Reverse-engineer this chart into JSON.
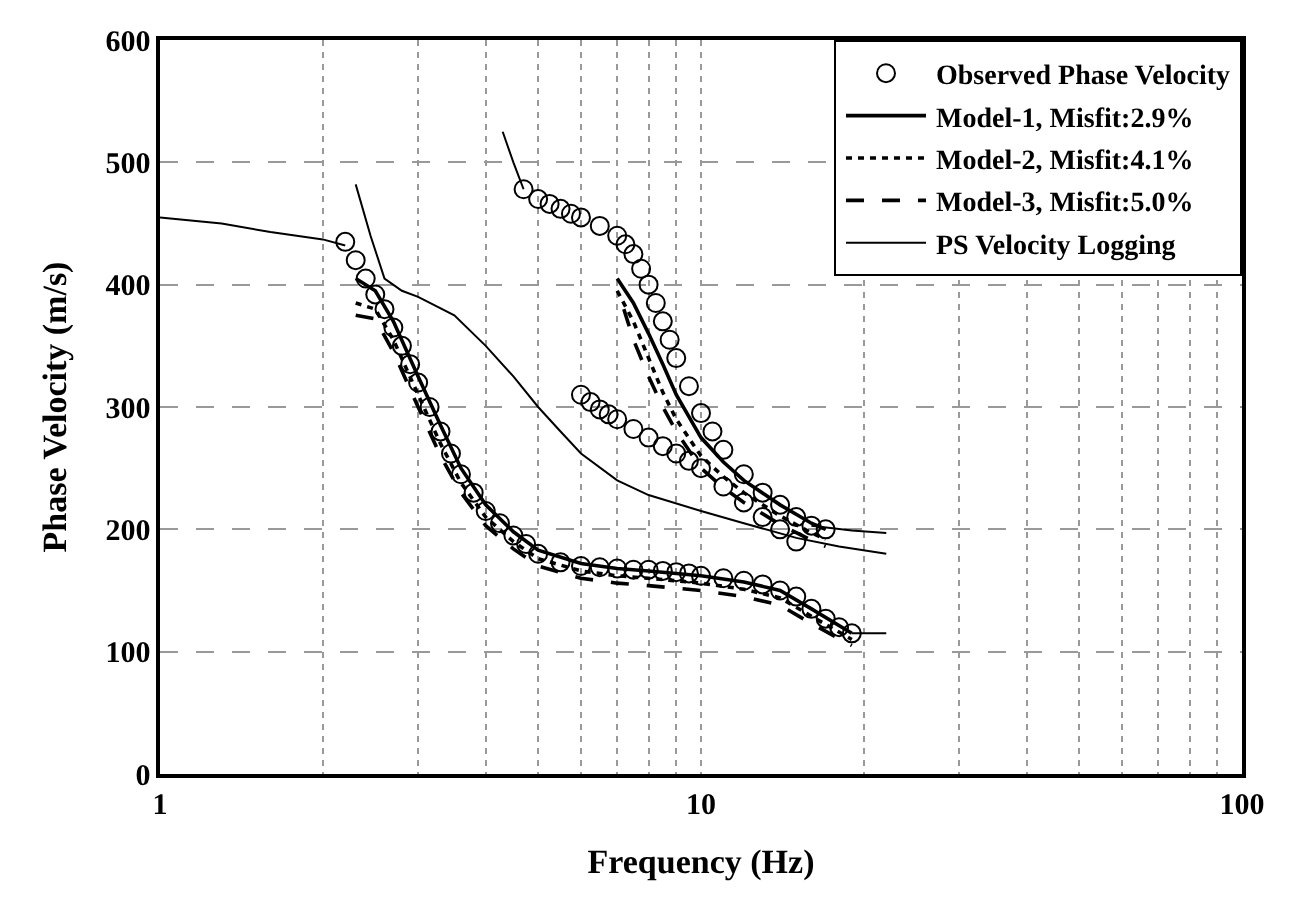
{
  "chart_data": {
    "type": "line",
    "xlabel": "Frequency (Hz)",
    "ylabel": "Phase Velocity (m/s)",
    "log": "x",
    "xlim": [
      1,
      100
    ],
    "xticks": [
      1,
      10,
      100
    ],
    "ylim": [
      0,
      600
    ],
    "yticks": [
      0,
      100,
      200,
      300,
      400,
      500,
      600
    ],
    "grid": true,
    "legend": "top right",
    "series": [
      {
        "name": "Observed Phase Velocity",
        "type": "scatter",
        "marker": "circle",
        "color": "#000000",
        "x": [
          2.2,
          2.3,
          2.4,
          2.5,
          2.6,
          2.7,
          2.8,
          2.9,
          3.0,
          3.15,
          3.3,
          3.45,
          3.6,
          3.8,
          4.0,
          4.25,
          4.5,
          4.75,
          5.0,
          5.5,
          6.0,
          6.5,
          7.0,
          7.5,
          8.0,
          8.5,
          9.0,
          9.5,
          10,
          11,
          12,
          13,
          14,
          15,
          16,
          17,
          18,
          19,
          6.0,
          6.25,
          6.5,
          6.75,
          7.0,
          7.5,
          8.0,
          8.5,
          9.0,
          9.5,
          10,
          11,
          12,
          13,
          14,
          15,
          4.7,
          5.0,
          5.25,
          5.5,
          5.75,
          6.0,
          6.5,
          7.0,
          7.25,
          7.5,
          7.75,
          8.0,
          8.25,
          8.5,
          8.75,
          9.0,
          9.5,
          10,
          10.5,
          11,
          12,
          13,
          14,
          15,
          16,
          17
        ],
        "values": [
          435,
          420,
          405,
          392,
          380,
          365,
          350,
          335,
          320,
          300,
          280,
          262,
          245,
          230,
          215,
          205,
          195,
          188,
          180,
          173,
          170,
          169,
          168,
          167,
          167,
          166,
          165,
          164,
          162,
          160,
          158,
          155,
          150,
          145,
          135,
          127,
          120,
          115,
          310,
          304,
          298,
          294,
          290,
          282,
          275,
          268,
          262,
          256,
          250,
          235,
          222,
          210,
          200,
          190,
          478,
          470,
          466,
          462,
          458,
          455,
          448,
          440,
          433,
          425,
          413,
          400,
          385,
          370,
          355,
          340,
          317,
          295,
          280,
          265,
          245,
          230,
          220,
          210,
          203,
          200
        ]
      },
      {
        "name": "Model-1, Misfit:2.9%",
        "line_style": "solid",
        "color": "#000000",
        "x": [
          2.3,
          2.5,
          2.7,
          3.0,
          3.3,
          3.6,
          4.0,
          4.5,
          5.0,
          6.0,
          7.0,
          8.0,
          10,
          12,
          14,
          16,
          19,
          null,
          7.0,
          7.5,
          8.0,
          8.5,
          9.0,
          10,
          11,
          12,
          14,
          16,
          17
        ],
        "values": [
          405,
          395,
          370,
          325,
          285,
          250,
          220,
          198,
          183,
          172,
          168,
          166,
          162,
          157,
          150,
          135,
          115,
          null,
          405,
          385,
          360,
          335,
          310,
          275,
          255,
          240,
          220,
          205,
          200
        ]
      },
      {
        "name": "Model-2, Misfit:4.1%",
        "line_style": "dotted",
        "color": "#000000",
        "x": [
          2.3,
          2.5,
          2.7,
          3.0,
          3.3,
          3.6,
          4.0,
          4.5,
          5.0,
          6.0,
          7.0,
          8.0,
          10,
          12,
          14,
          16,
          19,
          null,
          7.0,
          7.5,
          8.0,
          8.5,
          9.0,
          10,
          11,
          12,
          14,
          16,
          17
        ],
        "values": [
          385,
          380,
          355,
          310,
          270,
          238,
          210,
          190,
          176,
          166,
          162,
          160,
          156,
          151,
          144,
          129,
          110,
          null,
          395,
          370,
          340,
          312,
          290,
          260,
          243,
          230,
          211,
          197,
          192
        ]
      },
      {
        "name": "Model-3, Misfit:5.0%",
        "line_style": "dashed",
        "color": "#000000",
        "x": [
          2.3,
          2.5,
          2.7,
          3.0,
          3.3,
          3.6,
          4.0,
          4.5,
          5.0,
          6.0,
          7.0,
          8.0,
          10,
          12,
          14,
          16,
          19,
          null,
          7.2,
          7.5,
          8.0,
          8.5,
          9.0,
          10,
          11,
          12,
          14,
          16,
          17
        ],
        "values": [
          375,
          372,
          345,
          300,
          260,
          230,
          203,
          184,
          170,
          160,
          156,
          154,
          150,
          145,
          138,
          123,
          105,
          null,
          380,
          355,
          325,
          300,
          280,
          250,
          234,
          222,
          204,
          191,
          186
        ]
      },
      {
        "name": "PS Velocity Logging",
        "line_style": "solid",
        "color": "#000000",
        "x": [
          1,
          1.3,
          1.6,
          2.0,
          2.2,
          null,
          2.3,
          2.45,
          2.6,
          2.8,
          3.0,
          3.5,
          4.0,
          4.5,
          5.0,
          5.5,
          6.0,
          7.0,
          8.0,
          10,
          12,
          15,
          18,
          22,
          null,
          4.3,
          4.5,
          4.7,
          null,
          16,
          19,
          22,
          null,
          19,
          22
        ],
        "values": [
          455,
          450,
          443,
          437,
          432,
          null,
          482,
          440,
          405,
          395,
          390,
          375,
          350,
          325,
          300,
          280,
          262,
          240,
          228,
          215,
          205,
          193,
          186,
          180,
          null,
          525,
          500,
          478,
          null,
          203,
          199,
          197,
          null,
          115,
          115
        ]
      }
    ]
  }
}
